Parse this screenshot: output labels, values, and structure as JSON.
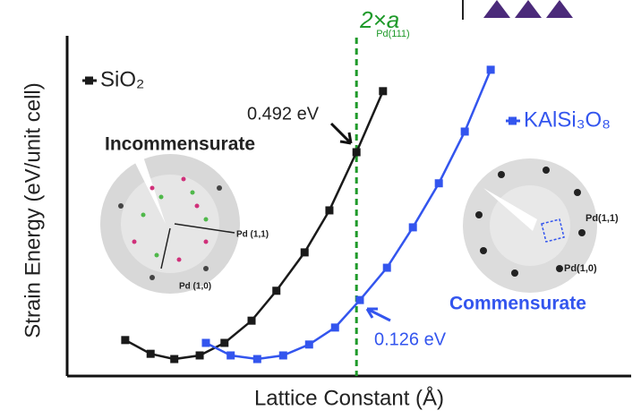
{
  "chart_data": {
    "type": "line",
    "x_label": "Lattice Constant (Å)",
    "y_label": "Strain Energy (eV/unit cell)",
    "xlim": [
      0,
      100
    ],
    "ylim": [
      -0.062,
      0.78
    ],
    "series": [
      {
        "name": "SiO₂",
        "color": "#1a1a1a",
        "x": [
          10.3,
          14.8,
          19.0,
          23.5,
          27.9,
          32.7,
          37.1,
          42.1,
          46.5,
          51.3,
          56.0
        ],
        "values": [
          0.027,
          -0.007,
          -0.02,
          -0.011,
          0.02,
          0.075,
          0.149,
          0.244,
          0.348,
          0.492,
          0.643
        ]
      },
      {
        "name": "KAlSi₃O₈",
        "color": "#3355ee",
        "x": [
          24.6,
          29.0,
          33.7,
          38.3,
          42.9,
          47.5,
          51.9,
          56.7,
          61.3,
          65.9,
          70.5,
          75.1
        ],
        "values": [
          0.02,
          -0.011,
          -0.02,
          -0.011,
          0.016,
          0.058,
          0.126,
          0.206,
          0.306,
          0.415,
          0.543,
          0.696
        ]
      }
    ],
    "reference_line": {
      "x": 51.3,
      "label": "2×a",
      "subscript": "Pd(111)",
      "color": "#1f9a2a"
    },
    "annotations": {
      "sio2_energy": "0.492 eV",
      "kalsi_energy": "0.126 eV",
      "incommensurate": "Incommensurate",
      "commensurate": "Commensurate",
      "left_pd11": "Pd (1,1)",
      "left_pd10": "Pd (1,0)",
      "right_pd11": "Pd(1,1)",
      "right_pd10": "Pd(1,0)"
    }
  }
}
